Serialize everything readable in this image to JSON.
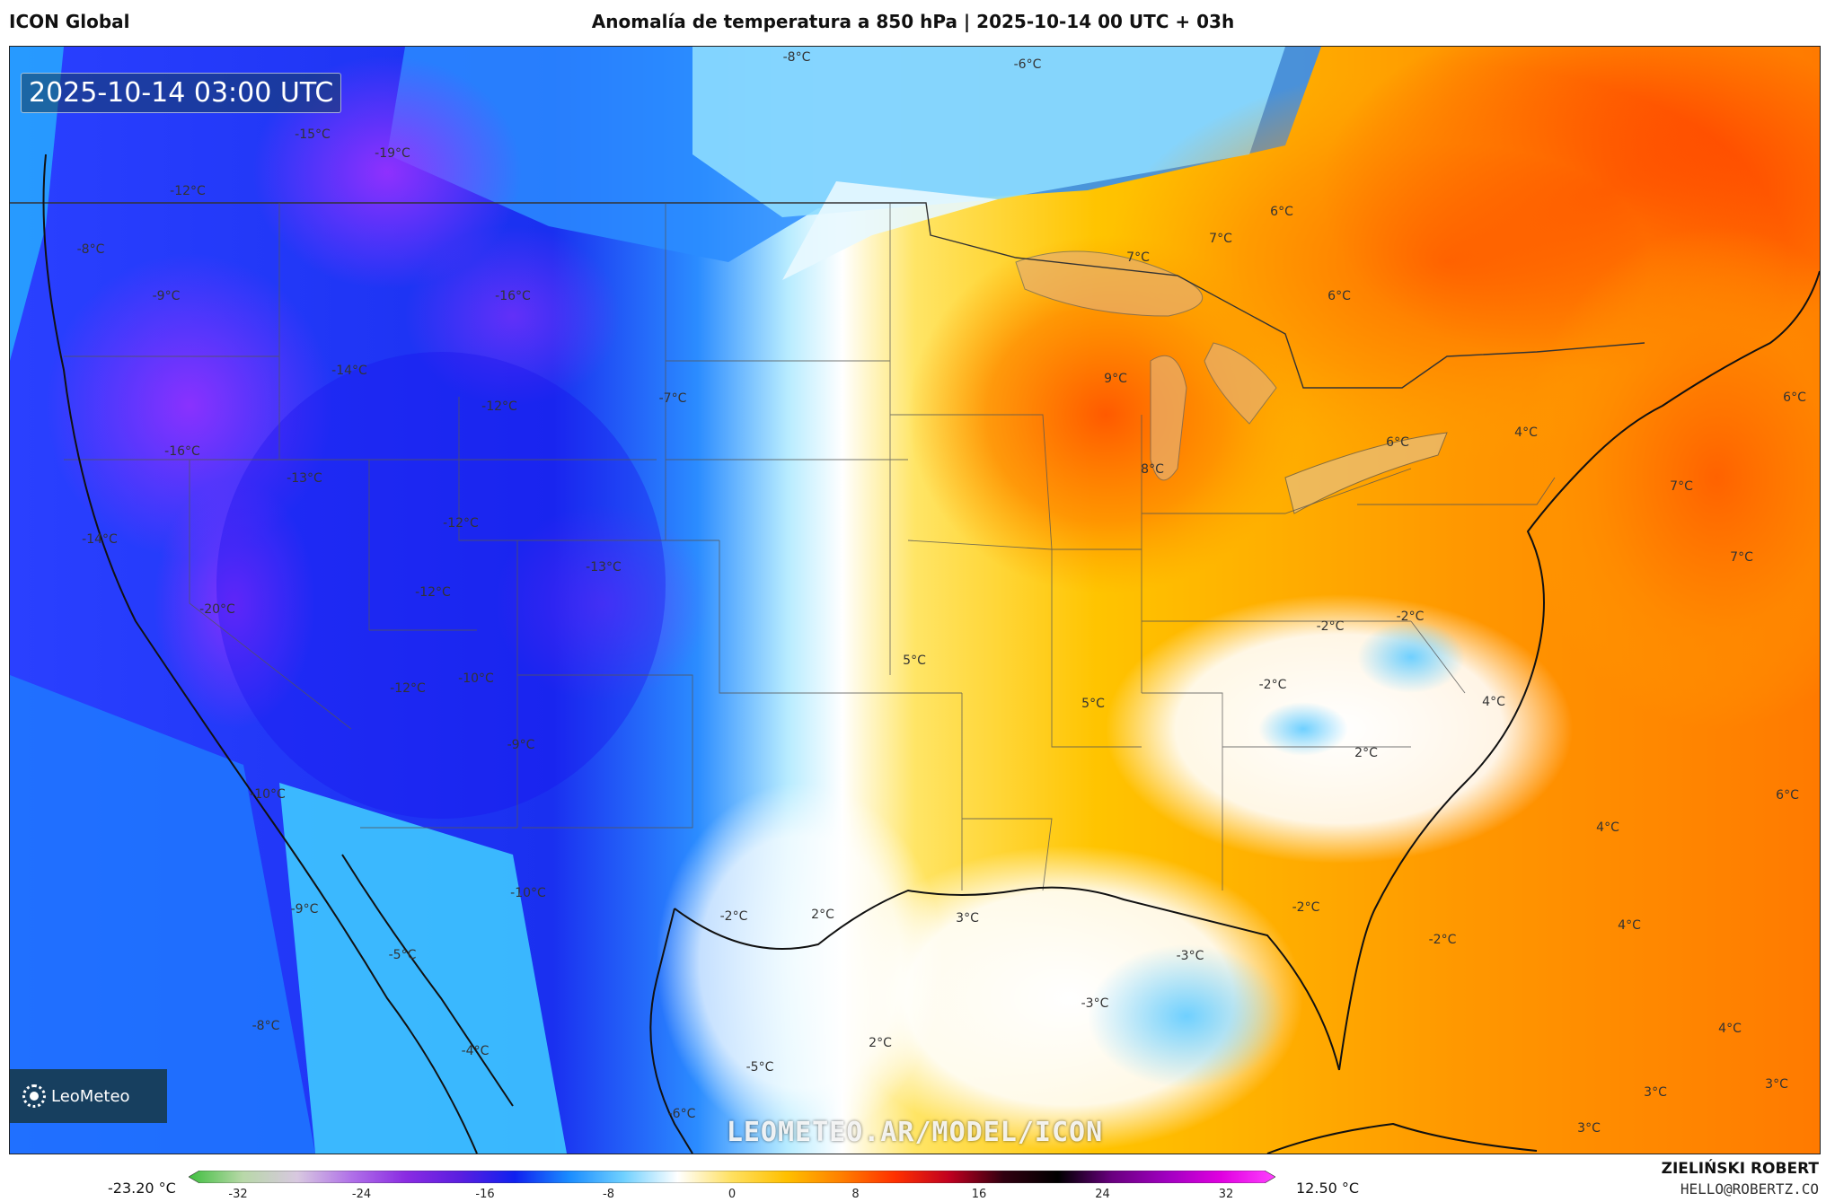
{
  "header": {
    "model_name": "ICON Global",
    "title": "Anomalía de temperatura a 850 hPa | 2025-10-14 00 UTC + 03h"
  },
  "map": {
    "timestamp": "2025-10-14 03:00 UTC",
    "logo_text": "LeoMeteo",
    "watermark": "LEOMETEO.AR/MODEL/ICON",
    "labels": [
      {
        "t": "-8°C"
      },
      {
        "t": "-6°C"
      },
      {
        "t": "-15°C"
      },
      {
        "t": "-19°C"
      },
      {
        "t": "-12°C"
      },
      {
        "t": "-8°C"
      },
      {
        "t": "-9°C"
      },
      {
        "t": "-16°C"
      },
      {
        "t": "-14°C"
      },
      {
        "t": "-12°C"
      },
      {
        "t": "-7°C"
      },
      {
        "t": "-16°C"
      },
      {
        "t": "-13°C"
      },
      {
        "t": "-12°C"
      },
      {
        "t": "-14°C"
      },
      {
        "t": "-12°C"
      },
      {
        "t": "-13°C"
      },
      {
        "t": "-20°C"
      },
      {
        "t": "-12°C"
      },
      {
        "t": "-10°C"
      },
      {
        "t": "-9°C"
      },
      {
        "t": "-10°C"
      },
      {
        "t": "-10°C"
      },
      {
        "t": "-9°C"
      },
      {
        "t": "-5°C"
      },
      {
        "t": "-8°C"
      },
      {
        "t": "-4°C"
      },
      {
        "t": "-2°C"
      },
      {
        "t": "-5°C"
      },
      {
        "t": "-6°C"
      },
      {
        "t": "6°C"
      },
      {
        "t": "7°C"
      },
      {
        "t": "7°C"
      },
      {
        "t": "6°C"
      },
      {
        "t": "9°C"
      },
      {
        "t": "8°C"
      },
      {
        "t": "6°C"
      },
      {
        "t": "4°C"
      },
      {
        "t": "6°C"
      },
      {
        "t": "7°C"
      },
      {
        "t": "7°C"
      },
      {
        "t": "5°C"
      },
      {
        "t": "5°C"
      },
      {
        "t": "-2°C"
      },
      {
        "t": "-2°C"
      },
      {
        "t": "-2°C"
      },
      {
        "t": "4°C"
      },
      {
        "t": "2°C"
      },
      {
        "t": "6°C"
      },
      {
        "t": "4°C"
      },
      {
        "t": "2°C"
      },
      {
        "t": "3°C"
      },
      {
        "t": "-2°C"
      },
      {
        "t": "-3°C"
      },
      {
        "t": "-3°C"
      },
      {
        "t": "4°C"
      },
      {
        "t": "2°C"
      },
      {
        "t": "4°C"
      },
      {
        "t": "3°C"
      },
      {
        "t": "3°C"
      },
      {
        "t": "3°C"
      },
      {
        "t": "-2°C"
      }
    ]
  },
  "colorbar": {
    "min_label": "-23.20 °C",
    "max_label": "12.50 °C",
    "ticks": [
      "-32",
      "-24",
      "-16",
      "-8",
      "0",
      "8",
      "16",
      "24",
      "32"
    ],
    "colors": [
      "#3fbf3f",
      "#b8d8a8",
      "#d8c8e0",
      "#b070e8",
      "#8a2be2",
      "#5a1ee0",
      "#1020f0",
      "#1a8cff",
      "#6fd0ff",
      "#ffffff",
      "#ffe060",
      "#ffc000",
      "#ff8000",
      "#ff3000",
      "#c00020",
      "#300010",
      "#000000",
      "#6a0080",
      "#a000c0",
      "#e000e0",
      "#ff40ff"
    ]
  },
  "footer": {
    "author": "ZIELIŃSKI ROBERT",
    "email": "HELLO@ROBERTZ.CO"
  }
}
